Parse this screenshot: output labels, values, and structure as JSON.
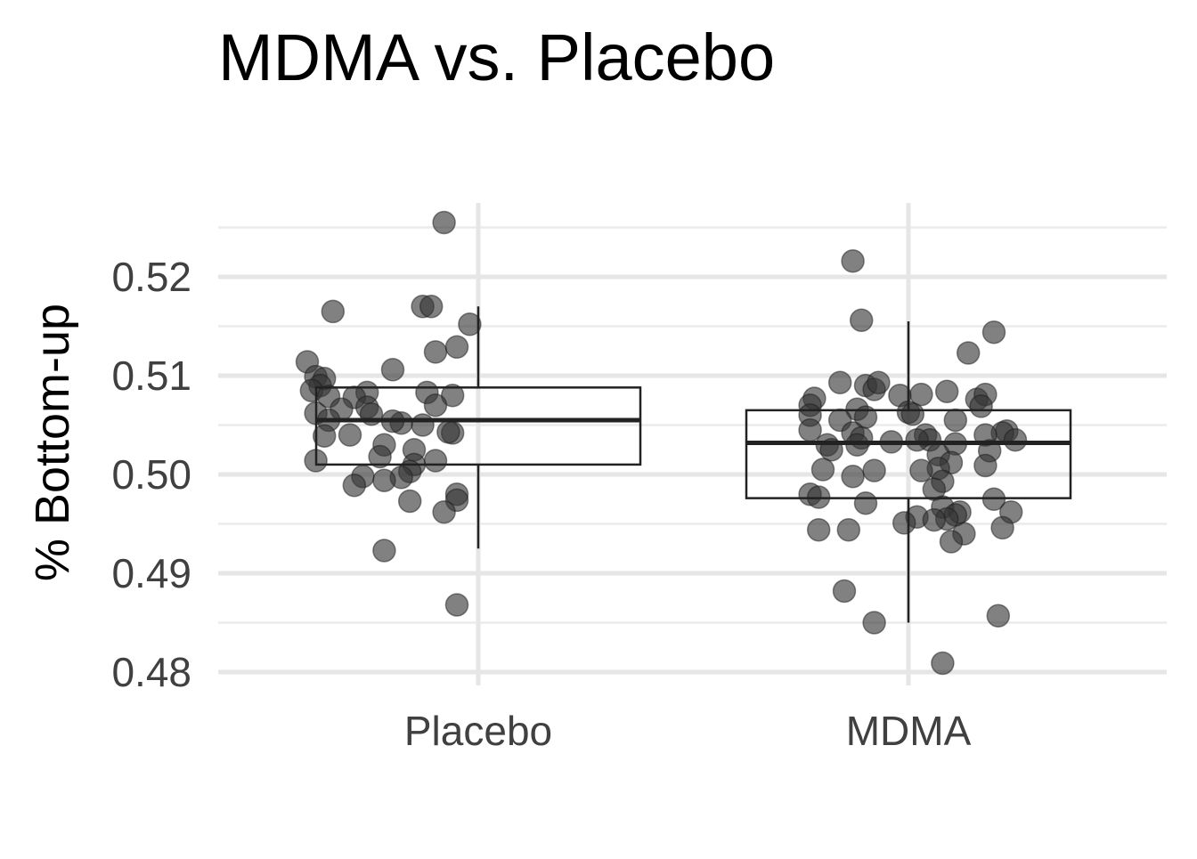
{
  "chart_data": {
    "type": "boxplot",
    "title": "MDMA vs. Placebo",
    "xlabel": "",
    "ylabel": "% Bottom-up",
    "ylim": [
      0.478,
      0.5255
    ],
    "yticks": [
      "0.48",
      "0.49",
      "0.50",
      "0.51",
      "0.52"
    ],
    "ytick_values": [
      0.48,
      0.49,
      0.5,
      0.51,
      0.52
    ],
    "categories": [
      "Placebo",
      "MDMA"
    ],
    "grid": true,
    "point_color": "#333333",
    "box_color": "#222222",
    "boxes": [
      {
        "category": "Placebo",
        "q1": 0.501,
        "median": 0.5055,
        "q3": 0.5088,
        "whisker_low": 0.4925,
        "whisker_high": 0.517
      },
      {
        "category": "MDMA",
        "q1": 0.4976,
        "median": 0.5032,
        "q3": 0.5065,
        "whisker_low": 0.485,
        "whisker_high": 0.5155
      }
    ],
    "series": [
      {
        "category": "Placebo",
        "points": [
          [
            -0.08,
            0.5255
          ],
          [
            -0.34,
            0.5165
          ],
          [
            -0.13,
            0.517
          ],
          [
            -0.11,
            0.517
          ],
          [
            -0.02,
            0.5152
          ],
          [
            -0.4,
            0.5114
          ],
          [
            -0.1,
            0.5124
          ],
          [
            -0.2,
            0.5106
          ],
          [
            -0.05,
            0.5129
          ],
          [
            -0.38,
            0.5099
          ],
          [
            -0.36,
            0.5097
          ],
          [
            -0.37,
            0.509
          ],
          [
            -0.39,
            0.5085
          ],
          [
            -0.35,
            0.5079
          ],
          [
            -0.06,
            0.508
          ],
          [
            -0.12,
            0.5083
          ],
          [
            -0.26,
            0.5083
          ],
          [
            -0.1,
            0.507
          ],
          [
            -0.29,
            0.5078
          ],
          [
            -0.32,
            0.5066
          ],
          [
            -0.26,
            0.5068
          ],
          [
            -0.25,
            0.5061
          ],
          [
            -0.38,
            0.5062
          ],
          [
            -0.35,
            0.5055
          ],
          [
            -0.06,
            0.5042
          ],
          [
            -0.13,
            0.505
          ],
          [
            -0.07,
            0.5043
          ],
          [
            -0.18,
            0.5052
          ],
          [
            -0.3,
            0.504
          ],
          [
            -0.36,
            0.5039
          ],
          [
            -0.2,
            0.5054
          ],
          [
            -0.22,
            0.503
          ],
          [
            -0.15,
            0.5025
          ],
          [
            -0.23,
            0.5018
          ],
          [
            -0.38,
            0.5014
          ],
          [
            -0.1,
            0.5014
          ],
          [
            -0.15,
            0.501
          ],
          [
            -0.16,
            0.5003
          ],
          [
            -0.18,
            0.4997
          ],
          [
            -0.27,
            0.4998
          ],
          [
            -0.22,
            0.4994
          ],
          [
            -0.29,
            0.4989
          ],
          [
            -0.05,
            0.498
          ],
          [
            -0.05,
            0.4974
          ],
          [
            -0.16,
            0.4973
          ],
          [
            -0.08,
            0.4962
          ],
          [
            -0.22,
            0.4923
          ],
          [
            -0.05,
            0.4868
          ]
        ]
      },
      {
        "category": "MDMA",
        "points": [
          [
            -0.13,
            0.5216
          ],
          [
            -0.11,
            0.5156
          ],
          [
            0.2,
            0.5144
          ],
          [
            0.14,
            0.5123
          ],
          [
            -0.16,
            0.5093
          ],
          [
            -0.1,
            0.509
          ],
          [
            -0.08,
            0.5086
          ],
          [
            -0.07,
            0.5093
          ],
          [
            -0.22,
            0.5077
          ],
          [
            -0.23,
            0.507
          ],
          [
            -0.02,
            0.508
          ],
          [
            0.03,
            0.5081
          ],
          [
            0.09,
            0.5084
          ],
          [
            0.16,
            0.5076
          ],
          [
            0.18,
            0.5081
          ],
          [
            -0.12,
            0.5066
          ],
          [
            -0.1,
            0.5058
          ],
          [
            -0.16,
            0.5055
          ],
          [
            0.17,
            0.5069
          ],
          [
            0.0,
            0.5063
          ],
          [
            -0.23,
            0.506
          ],
          [
            0.01,
            0.5061
          ],
          [
            0.11,
            0.5055
          ],
          [
            0.23,
            0.5044
          ],
          [
            0.22,
            0.5042
          ],
          [
            -0.23,
            0.5045
          ],
          [
            -0.13,
            0.5042
          ],
          [
            -0.11,
            0.5037
          ],
          [
            -0.04,
            0.5033
          ],
          [
            0.04,
            0.504
          ],
          [
            0.05,
            0.5035
          ],
          [
            0.18,
            0.504
          ],
          [
            0.25,
            0.5035
          ],
          [
            -0.19,
            0.503
          ],
          [
            -0.12,
            0.503
          ],
          [
            0.02,
            0.5035
          ],
          [
            0.11,
            0.5031
          ],
          [
            -0.18,
            0.5025
          ],
          [
            0.19,
            0.5024
          ],
          [
            0.07,
            0.502
          ],
          [
            0.18,
            0.5009
          ],
          [
            0.1,
            0.5012
          ],
          [
            0.07,
            0.5006
          ],
          [
            0.03,
            0.5004
          ],
          [
            -0.2,
            0.5005
          ],
          [
            -0.08,
            0.5004
          ],
          [
            -0.13,
            0.4998
          ],
          [
            0.08,
            0.4993
          ],
          [
            0.06,
            0.4985
          ],
          [
            -0.23,
            0.498
          ],
          [
            -0.21,
            0.4977
          ],
          [
            0.2,
            0.4975
          ],
          [
            -0.1,
            0.4971
          ],
          [
            0.08,
            0.4967
          ],
          [
            0.12,
            0.4962
          ],
          [
            0.24,
            0.4962
          ],
          [
            0.11,
            0.4959
          ],
          [
            0.02,
            0.4957
          ],
          [
            0.09,
            0.4955
          ],
          [
            -0.01,
            0.4951
          ],
          [
            0.06,
            0.4954
          ],
          [
            0.22,
            0.4946
          ],
          [
            -0.21,
            0.4944
          ],
          [
            -0.14,
            0.4944
          ],
          [
            0.13,
            0.494
          ],
          [
            0.1,
            0.4932
          ],
          [
            -0.15,
            0.4882
          ],
          [
            0.21,
            0.4857
          ],
          [
            -0.08,
            0.485
          ],
          [
            0.08,
            0.4809
          ]
        ]
      }
    ]
  }
}
